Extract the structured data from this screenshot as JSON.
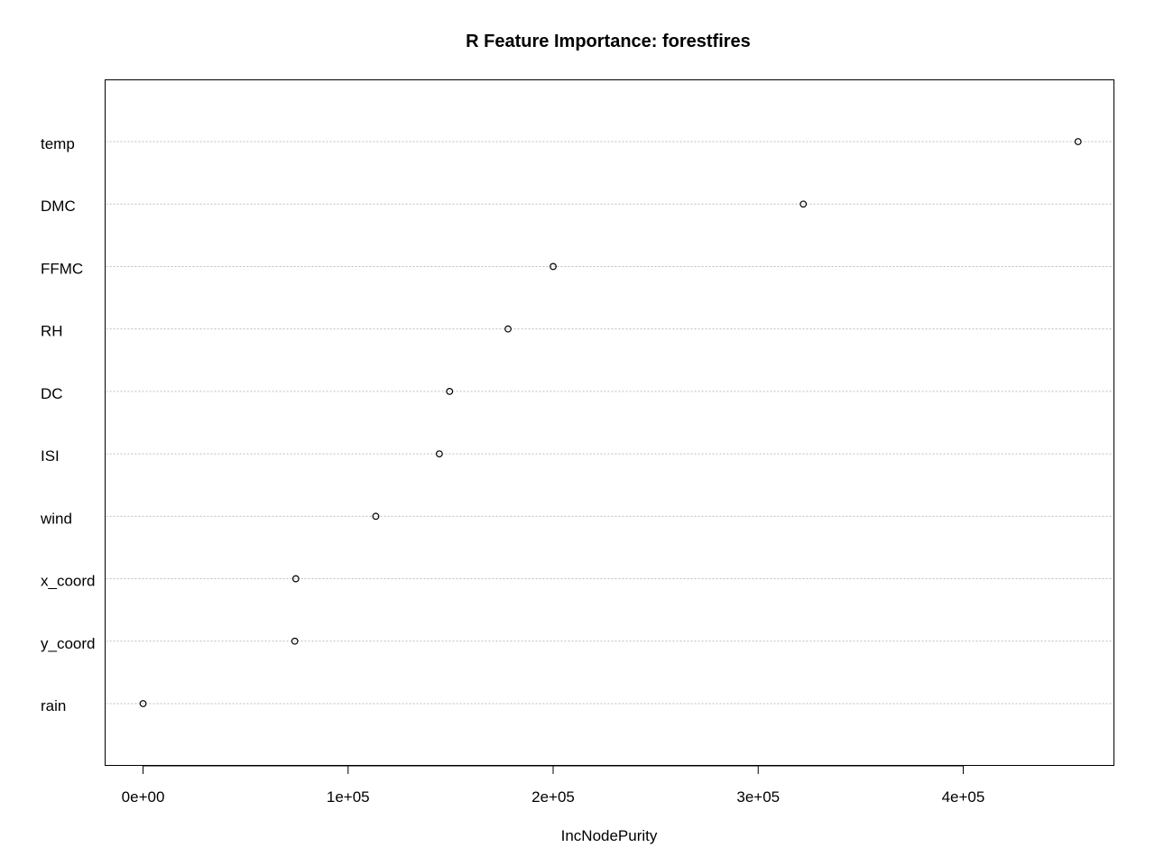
{
  "chart_data": {
    "type": "scatter",
    "title": "R Feature Importance: forestfires",
    "xlabel": "IncNodePurity",
    "ylabel": "",
    "xlim": [
      -18500,
      473500
    ],
    "x_ticks": [
      0,
      100000,
      200000,
      300000,
      400000
    ],
    "x_tick_labels": [
      "0e+00",
      "1e+05",
      "2e+05",
      "3e+05",
      "4e+05"
    ],
    "grid": "horizontal dotted",
    "legend": "none",
    "categories": [
      "temp",
      "DMC",
      "FFMC",
      "RH",
      "DC",
      "ISI",
      "wind",
      "x_coord",
      "y_coord",
      "rain"
    ],
    "values": [
      456000,
      322000,
      200000,
      178000,
      149500,
      144500,
      113500,
      74500,
      74000,
      0
    ]
  },
  "colors": {
    "background": "#ffffff",
    "frame": "#000000",
    "grid": "#bebebe",
    "point": "#000000"
  }
}
